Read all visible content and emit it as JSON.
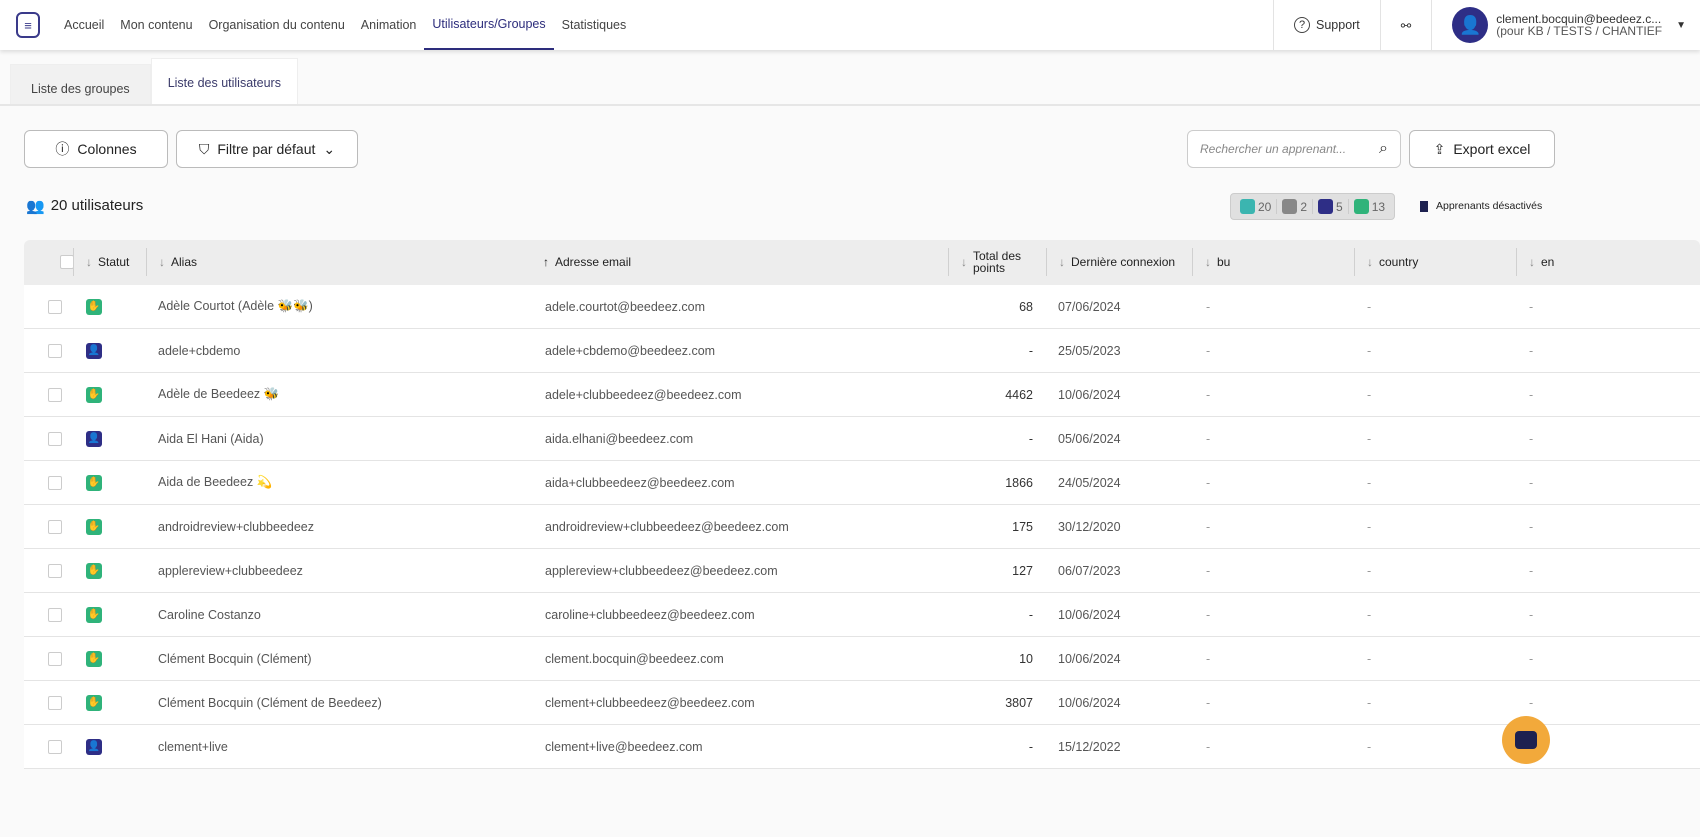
{
  "nav": {
    "items": [
      "Accueil",
      "Mon contenu",
      "Organisation du contenu",
      "Animation",
      "Utilisateurs/Groupes",
      "Statistiques"
    ],
    "active": "Utilisateurs/Groupes"
  },
  "header": {
    "support": "Support",
    "user_email": "clement.bocquin@beedeez.c...",
    "user_context": "(pour KB / TESTS / CHANTIEF"
  },
  "tabs": [
    "Liste des groupes",
    "Liste des utilisateurs"
  ],
  "toolbar": {
    "columns": "Colonnes",
    "filter": "Filtre par défaut",
    "search_placeholder": "Rechercher un apprenant...",
    "export": "Export excel"
  },
  "summary": {
    "count": "20 utilisateurs",
    "badges": [
      {
        "value": "20",
        "color": "#3bb5b0"
      },
      {
        "value": "2",
        "color": "#888888"
      },
      {
        "value": "5",
        "color": "#2e2e86"
      },
      {
        "value": "13",
        "color": "#2fb37a"
      }
    ],
    "deactivated": "Apprenants désactivés"
  },
  "table": {
    "headers": {
      "statut": "Statut",
      "alias": "Alias",
      "email": "Adresse email",
      "points": "Total des points",
      "last": "Dernière connexion",
      "bu": "bu",
      "country": "country",
      "en": "en"
    },
    "status_colors": {
      "active": "#2fb37a",
      "invited": "#2e2e86"
    },
    "rows": [
      {
        "status": "active",
        "alias": "Adèle Courtot (Adèle 🐝🐝)",
        "email": "adele.courtot@beedeez.com",
        "points": "68",
        "last": "07/06/2024",
        "bu": "-",
        "country": "-",
        "en": "-"
      },
      {
        "status": "invited",
        "alias": "adele+cbdemo",
        "email": "adele+cbdemo@beedeez.com",
        "points": "-",
        "last": "25/05/2023",
        "bu": "-",
        "country": "-",
        "en": "-"
      },
      {
        "status": "active",
        "alias": "Adèle de Beedeez 🐝",
        "email": "adele+clubbeedeez@beedeez.com",
        "points": "4462",
        "last": "10/06/2024",
        "bu": "-",
        "country": "-",
        "en": "-"
      },
      {
        "status": "invited",
        "alias": "Aida El Hani (Aida)",
        "email": "aida.elhani@beedeez.com",
        "points": "-",
        "last": "05/06/2024",
        "bu": "-",
        "country": "-",
        "en": "-"
      },
      {
        "status": "active",
        "alias": "Aida de Beedeez 💫",
        "email": "aida+clubbeedeez@beedeez.com",
        "points": "1866",
        "last": "24/05/2024",
        "bu": "-",
        "country": "-",
        "en": "-"
      },
      {
        "status": "active",
        "alias": "androidreview+clubbeedeez",
        "email": "androidreview+clubbeedeez@beedeez.com",
        "points": "175",
        "last": "30/12/2020",
        "bu": "-",
        "country": "-",
        "en": "-"
      },
      {
        "status": "active",
        "alias": "applereview+clubbeedeez",
        "email": "applereview+clubbeedeez@beedeez.com",
        "points": "127",
        "last": "06/07/2023",
        "bu": "-",
        "country": "-",
        "en": "-"
      },
      {
        "status": "active",
        "alias": "Caroline Costanzo",
        "email": "caroline+clubbeedeez@beedeez.com",
        "points": "-",
        "last": "10/06/2024",
        "bu": "-",
        "country": "-",
        "en": "-"
      },
      {
        "status": "active",
        "alias": "Clément Bocquin (Clément)",
        "email": "clement.bocquin@beedeez.com",
        "points": "10",
        "last": "10/06/2024",
        "bu": "-",
        "country": "-",
        "en": "-"
      },
      {
        "status": "active",
        "alias": "Clément Bocquin (Clément de Beedeez)",
        "email": "clement+clubbeedeez@beedeez.com",
        "points": "3807",
        "last": "10/06/2024",
        "bu": "-",
        "country": "-",
        "en": "-"
      },
      {
        "status": "invited",
        "alias": "clement+live",
        "email": "clement+live@beedeez.com",
        "points": "-",
        "last": "15/12/2022",
        "bu": "-",
        "country": "-",
        "en": "-"
      }
    ]
  }
}
